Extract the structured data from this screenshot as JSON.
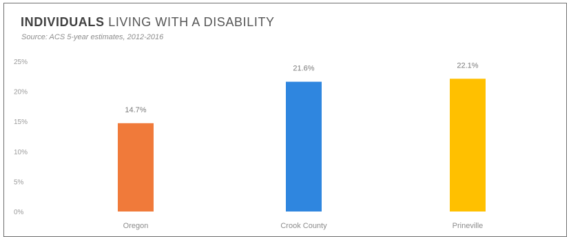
{
  "title_bold": "INDIVIDUALS",
  "title_rest": " LIVING WITH A DISABILITY",
  "subtitle": "Source: ACS 5-year estimates, 2012-2016",
  "chart_data": {
    "type": "bar",
    "title": "INDIVIDUALS LIVING WITH A DISABILITY",
    "subtitle": "Source: ACS 5-year estimates, 2012-2016",
    "categories": [
      "Oregon",
      "Crook County",
      "Prineville"
    ],
    "values": [
      14.7,
      21.6,
      22.1
    ],
    "data_labels": [
      "14.7%",
      "21.6%",
      "22.1%"
    ],
    "colors": [
      "#F07A3A",
      "#2F86DF",
      "#FFC000"
    ],
    "ylim": [
      0,
      25
    ],
    "yticks": [
      0,
      5,
      10,
      15,
      20,
      25
    ],
    "ytick_labels": [
      "0%",
      "5%",
      "10%",
      "15%",
      "20%",
      "25%"
    ],
    "xlabel": "",
    "ylabel": "",
    "grid": false,
    "legend": "none"
  }
}
